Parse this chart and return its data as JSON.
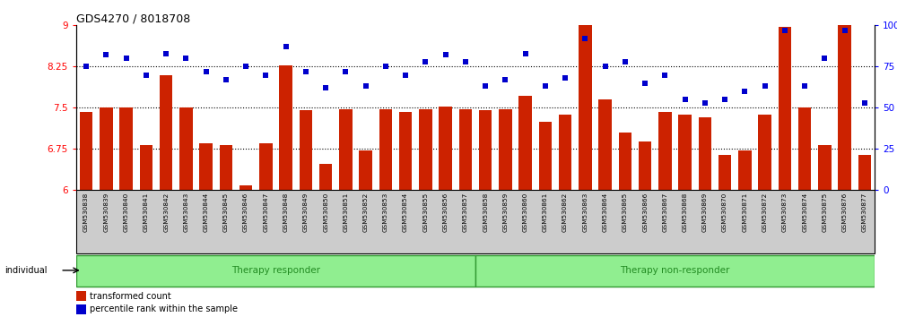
{
  "title": "GDS4270 / 8018708",
  "samples": [
    "GSM530838",
    "GSM530839",
    "GSM530840",
    "GSM530841",
    "GSM530842",
    "GSM530843",
    "GSM530844",
    "GSM530845",
    "GSM530846",
    "GSM530847",
    "GSM530848",
    "GSM530849",
    "GSM530850",
    "GSM530851",
    "GSM530852",
    "GSM530853",
    "GSM530854",
    "GSM530855",
    "GSM530856",
    "GSM530857",
    "GSM530858",
    "GSM530859",
    "GSM530860",
    "GSM530861",
    "GSM530862",
    "GSM530863",
    "GSM530864",
    "GSM530865",
    "GSM530866",
    "GSM530867",
    "GSM530868",
    "GSM530869",
    "GSM530870",
    "GSM530871",
    "GSM530872",
    "GSM530873",
    "GSM530874",
    "GSM530875",
    "GSM530876",
    "GSM530877"
  ],
  "bar_values": [
    7.42,
    7.5,
    7.5,
    6.82,
    8.1,
    7.5,
    6.85,
    6.82,
    6.08,
    6.85,
    8.27,
    7.45,
    6.48,
    7.47,
    6.72,
    7.47,
    7.43,
    7.47,
    7.52,
    7.47,
    7.45,
    7.48,
    7.72,
    7.25,
    7.38,
    9.0,
    7.65,
    7.05,
    6.88,
    7.42,
    7.38,
    7.32,
    6.65,
    6.72,
    7.38,
    8.98,
    7.5,
    6.82,
    9.0,
    6.65
  ],
  "percentile_values": [
    75,
    82,
    80,
    70,
    83,
    80,
    72,
    67,
    75,
    70,
    87,
    72,
    62,
    72,
    63,
    75,
    70,
    78,
    82,
    78,
    63,
    67,
    83,
    63,
    68,
    92,
    75,
    78,
    65,
    70,
    55,
    53,
    55,
    60,
    63,
    97,
    63,
    80,
    97,
    53
  ],
  "groups": [
    {
      "label": "Therapy responder",
      "start": 0,
      "end": 19
    },
    {
      "label": "Therapy non-responder",
      "start": 20,
      "end": 39
    }
  ],
  "bar_color": "#CC2200",
  "dot_color": "#0000CC",
  "bar_ylim": [
    6,
    9
  ],
  "bar_yticks": [
    6,
    6.75,
    7.5,
    8.25,
    9
  ],
  "bar_ytick_labels": [
    "6",
    "6.75",
    "7.5",
    "8.25",
    "9"
  ],
  "percentile_ylim": [
    0,
    100
  ],
  "percentile_yticks": [
    0,
    25,
    50,
    75,
    100
  ],
  "percentile_ytick_labels": [
    "0",
    "25",
    "50",
    "75",
    "100%"
  ],
  "background_color": "#ffffff",
  "xtick_bg": "#cccccc",
  "group_fill": "#90EE90",
  "group_edge": "#339933",
  "group_text_color": "#228B22",
  "legend_label_bar": "transformed count",
  "legend_label_dot": "percentile rank within the sample",
  "individual_label": "individual"
}
